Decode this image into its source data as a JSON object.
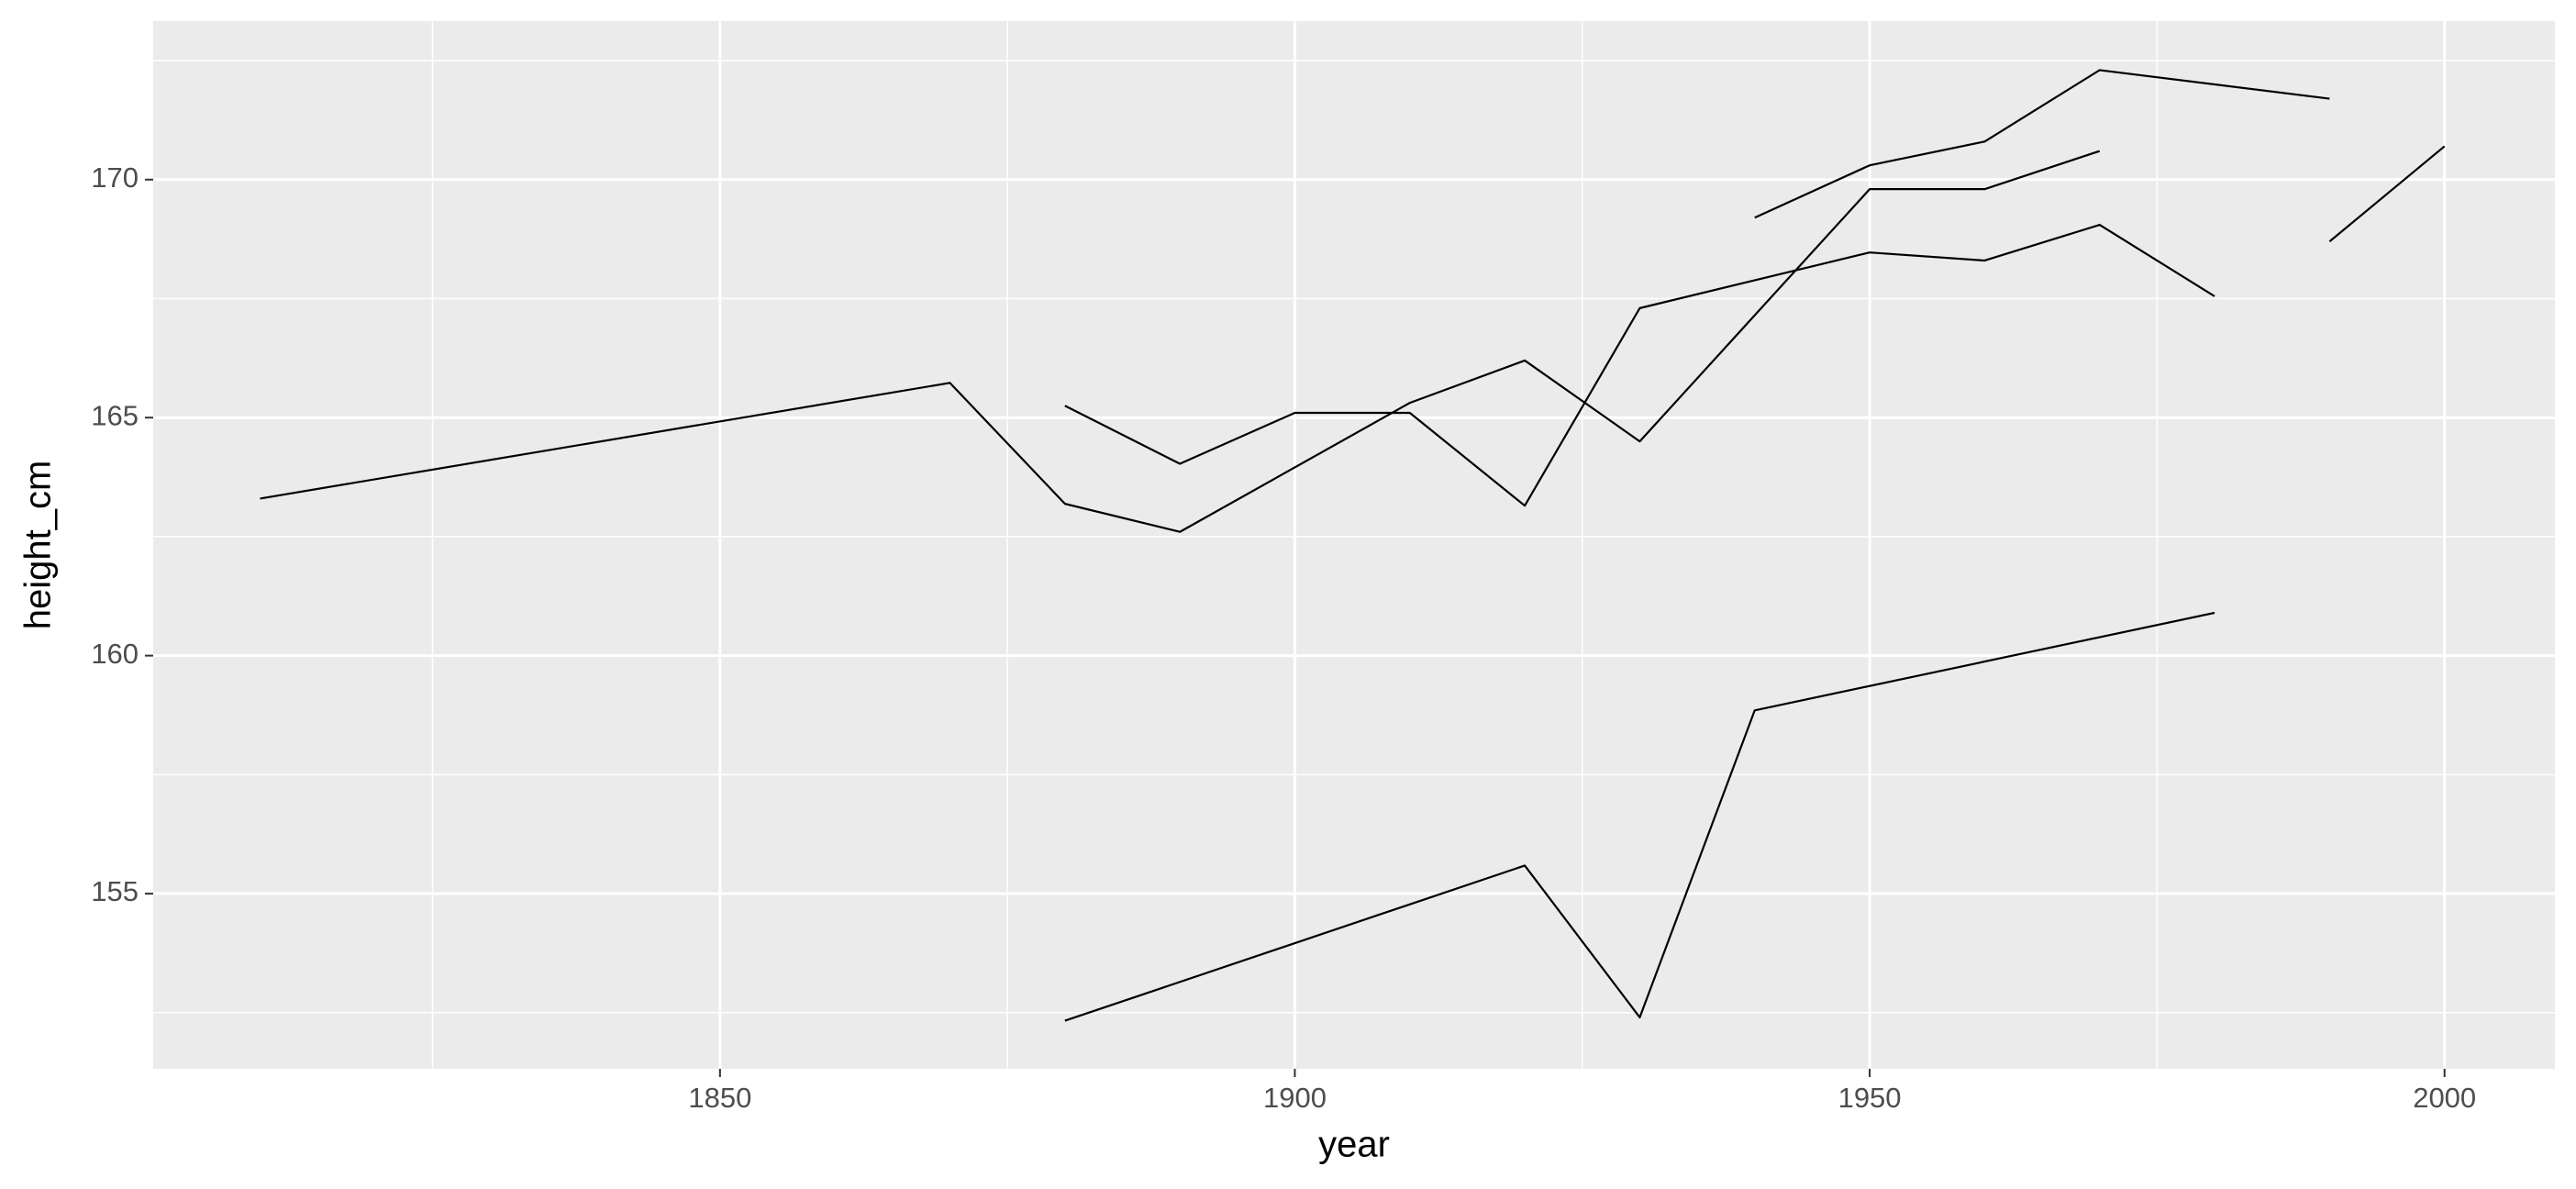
{
  "chart_data": {
    "type": "line",
    "x_label": "year",
    "y_label": "height_cm",
    "color": "#000000",
    "grid": true,
    "xlim": [
      1800.7,
      2009.6
    ],
    "ylim": [
      151.32,
      173.33
    ],
    "xticks": [
      1850,
      1900,
      1950,
      2000
    ],
    "yticks": [
      155,
      160,
      165,
      170
    ],
    "series": [
      {
        "x": [
          1810,
          1870,
          1880,
          1890,
          1910,
          1920,
          1930,
          1950,
          1960,
          1970
        ],
        "values": [
          163.3,
          165.73,
          163.19,
          162.6,
          165.31,
          166.2,
          164.5,
          169.8,
          169.8,
          170.6
        ]
      },
      {
        "x": [
          1880,
          1890,
          1900,
          1910,
          1920,
          1930,
          1950,
          1960,
          1970,
          1980
        ],
        "values": [
          165.25,
          164.03,
          165.1,
          165.1,
          163.15,
          167.3,
          168.47,
          168.3,
          169.05,
          167.55
        ]
      },
      {
        "x": [
          1940,
          1950,
          1960,
          1970,
          1990
        ],
        "values": [
          169.2,
          170.3,
          170.8,
          172.3,
          171.7
        ]
      },
      {
        "x": [
          1990,
          2000
        ],
        "values": [
          168.7,
          170.7
        ]
      },
      {
        "x": [
          1880,
          1920,
          1930,
          1940,
          1980
        ],
        "values": [
          152.33,
          155.59,
          152.4,
          158.85,
          160.9
        ]
      }
    ]
  }
}
